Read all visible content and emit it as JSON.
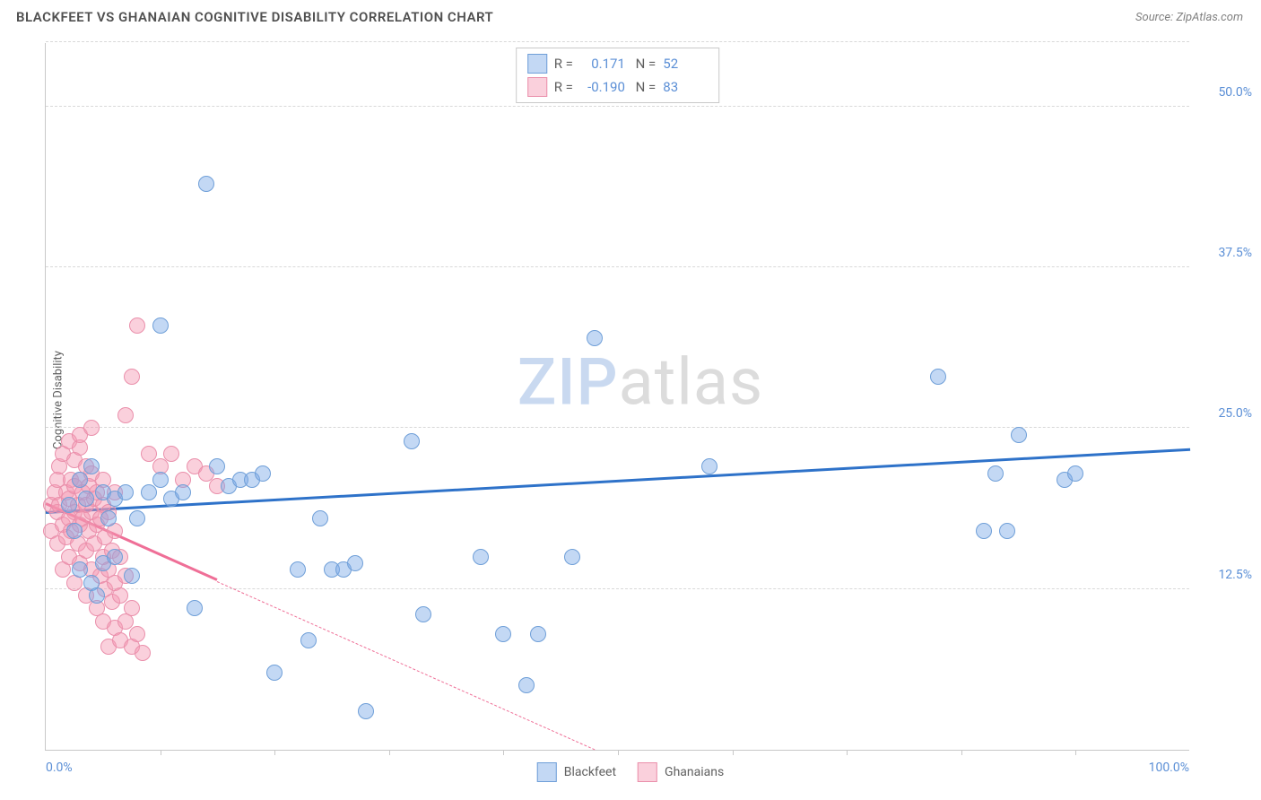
{
  "title": "BLACKFEET VS GHANAIAN COGNITIVE DISABILITY CORRELATION CHART",
  "source_label": "Source:",
  "source_name": "ZipAtlas.com",
  "ylabel": "Cognitive Disability",
  "watermark": {
    "part1": "ZIP",
    "part2": "atlas"
  },
  "chart": {
    "type": "scatter",
    "xlim": [
      0,
      100
    ],
    "ylim": [
      0,
      55
    ],
    "background_color": "#ffffff",
    "grid_color": "#d8d8d8",
    "axis_color": "#c8c8c8",
    "y_gridlines": [
      12.5,
      25.0,
      37.5,
      50.0,
      55.0
    ],
    "y_tick_labels": [
      {
        "v": 12.5,
        "label": "12.5%"
      },
      {
        "v": 25.0,
        "label": "25.0%"
      },
      {
        "v": 37.5,
        "label": "37.5%"
      },
      {
        "v": 50.0,
        "label": "50.0%"
      }
    ],
    "x_tick_marks": [
      10,
      20,
      30,
      40,
      50,
      60,
      70,
      80,
      90
    ],
    "x_tick_labels": [
      {
        "v": 0,
        "label": "0.0%",
        "align": "left"
      },
      {
        "v": 100,
        "label": "100.0%",
        "align": "right"
      }
    ],
    "point_radius": 8,
    "point_border_width": 1,
    "series": [
      {
        "name": "Blackfeet",
        "fill": "rgba(122,169,230,0.45)",
        "stroke": "#6f9fd8",
        "trend_color": "#2e72c9",
        "trend": {
          "x1": 0,
          "y1": 18.3,
          "x2": 100,
          "y2": 23.2,
          "dashed_after_x": null
        },
        "R": "0.171",
        "N": "52",
        "points": [
          [
            2,
            19
          ],
          [
            2.5,
            17
          ],
          [
            3,
            14
          ],
          [
            3,
            21
          ],
          [
            3.5,
            19.5
          ],
          [
            4,
            22
          ],
          [
            4,
            13
          ],
          [
            4.5,
            12
          ],
          [
            5,
            20
          ],
          [
            5,
            14.5
          ],
          [
            5.5,
            18
          ],
          [
            6,
            19.5
          ],
          [
            6,
            15
          ],
          [
            7,
            20
          ],
          [
            7.5,
            13.5
          ],
          [
            8,
            18
          ],
          [
            9,
            20
          ],
          [
            10,
            21
          ],
          [
            10,
            33
          ],
          [
            11,
            19.5
          ],
          [
            12,
            20
          ],
          [
            13,
            11
          ],
          [
            14,
            44
          ],
          [
            15,
            22
          ],
          [
            16,
            20.5
          ],
          [
            17,
            21
          ],
          [
            18,
            21
          ],
          [
            19,
            21.5
          ],
          [
            20,
            6
          ],
          [
            22,
            14
          ],
          [
            23,
            8.5
          ],
          [
            24,
            18
          ],
          [
            25,
            14
          ],
          [
            26,
            14
          ],
          [
            27,
            14.5
          ],
          [
            28,
            3
          ],
          [
            32,
            24
          ],
          [
            33,
            10.5
          ],
          [
            38,
            15
          ],
          [
            40,
            9
          ],
          [
            42,
            5
          ],
          [
            43,
            9
          ],
          [
            46,
            15
          ],
          [
            48,
            32
          ],
          [
            58,
            22
          ],
          [
            78,
            29
          ],
          [
            82,
            17
          ],
          [
            83,
            21.5
          ],
          [
            84,
            17
          ],
          [
            85,
            24.5
          ],
          [
            89,
            21
          ],
          [
            90,
            21.5
          ]
        ]
      },
      {
        "name": "Ghanaians",
        "fill": "rgba(244,150,178,0.45)",
        "stroke": "#ea8fab",
        "trend_color": "#ef6f97",
        "trend": {
          "x1": 0,
          "y1": 19.0,
          "x2": 48,
          "y2": 0,
          "dashed_after_x": 15
        },
        "R": "-0.190",
        "N": "83",
        "points": [
          [
            0.5,
            19
          ],
          [
            0.5,
            17
          ],
          [
            0.8,
            20
          ],
          [
            1,
            18.5
          ],
          [
            1,
            16
          ],
          [
            1,
            21
          ],
          [
            1.2,
            19
          ],
          [
            1.2,
            22
          ],
          [
            1.5,
            17.5
          ],
          [
            1.5,
            14
          ],
          [
            1.5,
            23
          ],
          [
            1.8,
            20
          ],
          [
            1.8,
            16.5
          ],
          [
            2,
            18
          ],
          [
            2,
            19.5
          ],
          [
            2,
            15
          ],
          [
            2,
            24
          ],
          [
            2.2,
            21
          ],
          [
            2.2,
            17
          ],
          [
            2.5,
            20.5
          ],
          [
            2.5,
            18.5
          ],
          [
            2.5,
            13
          ],
          [
            2.5,
            22.5
          ],
          [
            2.8,
            19
          ],
          [
            2.8,
            16
          ],
          [
            3,
            21
          ],
          [
            3,
            17.5
          ],
          [
            3,
            14.5
          ],
          [
            3,
            23.5
          ],
          [
            3.2,
            20
          ],
          [
            3.2,
            18
          ],
          [
            3.5,
            19
          ],
          [
            3.5,
            15.5
          ],
          [
            3.5,
            12
          ],
          [
            3.5,
            22
          ],
          [
            3.8,
            17
          ],
          [
            3.8,
            20.5
          ],
          [
            4,
            18.5
          ],
          [
            4,
            14
          ],
          [
            4,
            21.5
          ],
          [
            4.2,
            19.5
          ],
          [
            4.2,
            16
          ],
          [
            4.5,
            11
          ],
          [
            4.5,
            20
          ],
          [
            4.5,
            17.5
          ],
          [
            4.8,
            13.5
          ],
          [
            4.8,
            18
          ],
          [
            5,
            15
          ],
          [
            5,
            19
          ],
          [
            5,
            10
          ],
          [
            5,
            21
          ],
          [
            5.2,
            16.5
          ],
          [
            5.2,
            12.5
          ],
          [
            5.5,
            14
          ],
          [
            5.5,
            18.5
          ],
          [
            5.5,
            8
          ],
          [
            5.8,
            11.5
          ],
          [
            5.8,
            15.5
          ],
          [
            6,
            13
          ],
          [
            6,
            17
          ],
          [
            6,
            9.5
          ],
          [
            6,
            20
          ],
          [
            6.5,
            12
          ],
          [
            6.5,
            8.5
          ],
          [
            6.5,
            15
          ],
          [
            7,
            10
          ],
          [
            7,
            13.5
          ],
          [
            7,
            26
          ],
          [
            7.5,
            11
          ],
          [
            7.5,
            8
          ],
          [
            7.5,
            29
          ],
          [
            8,
            9
          ],
          [
            8,
            33
          ],
          [
            8.5,
            7.5
          ],
          [
            9,
            23
          ],
          [
            10,
            22
          ],
          [
            11,
            23
          ],
          [
            12,
            21
          ],
          [
            13,
            22
          ],
          [
            14,
            21.5
          ],
          [
            15,
            20.5
          ],
          [
            3,
            24.5
          ],
          [
            4,
            25
          ]
        ]
      }
    ]
  },
  "stats_box": {
    "rows": [
      {
        "swatch_fill": "rgba(122,169,230,0.45)",
        "swatch_stroke": "#6f9fd8",
        "R": "0.171",
        "N": "52"
      },
      {
        "swatch_fill": "rgba(244,150,178,0.45)",
        "swatch_stroke": "#ea8fab",
        "R": "-0.190",
        "N": "83"
      }
    ],
    "R_label": "R =",
    "N_label": "N ="
  },
  "legend": [
    {
      "label": "Blackfeet",
      "fill": "rgba(122,169,230,0.45)",
      "stroke": "#6f9fd8"
    },
    {
      "label": "Ghanaians",
      "fill": "rgba(244,150,178,0.45)",
      "stroke": "#ea8fab"
    }
  ]
}
